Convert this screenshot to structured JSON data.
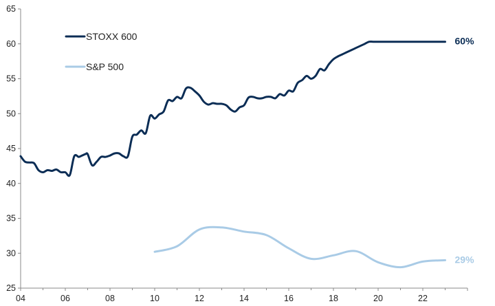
{
  "chart_data": {
    "type": "line",
    "title": "",
    "xlabel": "",
    "ylabel": "",
    "xlim": [
      2004,
      2024
    ],
    "ylim": [
      25,
      65
    ],
    "y_ticks": [
      25,
      30,
      35,
      40,
      45,
      50,
      55,
      60,
      65
    ],
    "x_ticks": [
      2004,
      2006,
      2008,
      2010,
      2012,
      2014,
      2016,
      2018,
      2020,
      2022
    ],
    "x_tick_labels": [
      "04",
      "06",
      "08",
      "10",
      "12",
      "14",
      "16",
      "18",
      "20",
      "22"
    ],
    "grid": false,
    "legend_position": "top-left",
    "series": [
      {
        "name": "STOXX 600",
        "color": "#0b2d55",
        "end_label": "60%",
        "x": [
          2004.0,
          2004.2,
          2004.4,
          2004.6,
          2004.8,
          2005.0,
          2005.2,
          2005.4,
          2005.6,
          2005.8,
          2006.0,
          2006.2,
          2006.4,
          2006.6,
          2006.75,
          2006.9,
          2007.0,
          2007.2,
          2007.4,
          2007.6,
          2007.8,
          2008.0,
          2008.2,
          2008.4,
          2008.6,
          2008.8,
          2009.0,
          2009.2,
          2009.4,
          2009.6,
          2009.8,
          2010.0,
          2010.2,
          2010.4,
          2010.6,
          2010.8,
          2011.0,
          2011.2,
          2011.4,
          2011.6,
          2011.8,
          2012.0,
          2012.2,
          2012.4,
          2012.6,
          2012.8,
          2013.0,
          2013.2,
          2013.4,
          2013.6,
          2013.8,
          2014.0,
          2014.2,
          2014.4,
          2014.6,
          2014.8,
          2015.0,
          2015.2,
          2015.4,
          2015.6,
          2015.8,
          2016.0,
          2016.2,
          2016.4,
          2016.6,
          2016.8,
          2017.0,
          2017.2,
          2017.4,
          2017.6,
          2017.8,
          2018.0,
          2018.2,
          2018.4,
          2018.6,
          2018.8,
          2019.0,
          2019.2,
          2019.4,
          2019.6,
          2019.8,
          2020.0,
          2020.2,
          2020.4,
          2020.6,
          2020.8,
          2021.0,
          2021.2,
          2021.4,
          2021.6,
          2021.8,
          2022.0,
          2022.2,
          2022.4,
          2022.6,
          2022.8,
          2023.0
        ],
        "values": [
          43.9,
          43.1,
          43.0,
          42.9,
          41.9,
          41.6,
          41.9,
          41.8,
          42.0,
          41.6,
          41.6,
          41.2,
          43.9,
          43.8,
          44.0,
          44.2,
          44.2,
          42.6,
          43.1,
          43.8,
          43.8,
          44.0,
          44.3,
          44.3,
          43.9,
          43.9,
          46.7,
          47.0,
          47.6,
          47.2,
          49.7,
          49.3,
          49.9,
          50.3,
          51.9,
          51.8,
          52.4,
          52.2,
          53.6,
          53.7,
          53.2,
          52.6,
          51.7,
          51.3,
          51.5,
          51.4,
          51.4,
          51.2,
          50.6,
          50.3,
          50.9,
          51.2,
          52.3,
          52.4,
          52.2,
          52.2,
          52.4,
          52.4,
          52.2,
          52.8,
          52.6,
          53.3,
          53.2,
          54.4,
          54.8,
          55.4,
          55.0,
          55.4,
          56.4,
          56.2,
          57.1,
          57.8,
          58.2,
          58.5,
          58.8,
          59.1,
          59.4,
          59.7,
          60.0,
          60.3,
          60.3,
          60.3,
          60.3,
          60.3,
          60.3,
          60.3,
          60.3,
          60.3,
          60.3,
          60.3,
          60.3,
          60.3,
          60.3,
          60.3,
          60.3,
          60.3,
          60.3
        ]
      },
      {
        "name": "S&P 500",
        "color": "#a9cbe6",
        "end_label": "29%",
        "x": [
          2010,
          2011,
          2012,
          2013,
          2014,
          2015,
          2016,
          2017,
          2018,
          2019,
          2020,
          2021,
          2022,
          2023
        ],
        "values": [
          30.2,
          31.0,
          33.4,
          33.7,
          33.1,
          32.6,
          30.7,
          29.2,
          29.7,
          30.3,
          28.7,
          28.0,
          28.8,
          29.0
        ]
      }
    ]
  }
}
